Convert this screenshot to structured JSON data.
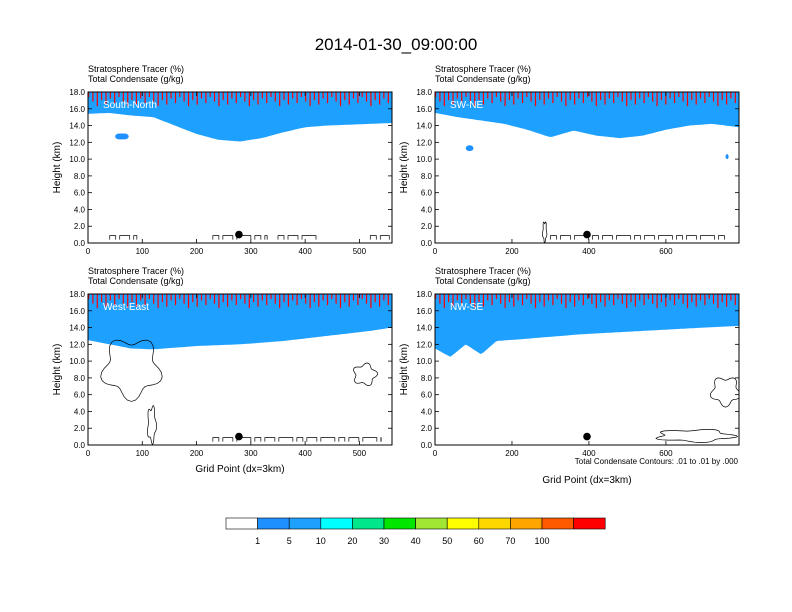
{
  "figure": {
    "title": "2014-01-30_09:00:00",
    "footnote": "Total Condensate Contours: .01 to .01 by .000",
    "colors": {
      "background": "#ffffff",
      "frame": "#000000",
      "contour": "#000000",
      "marker": "#000000"
    }
  },
  "colorbar": {
    "labels": [
      "1",
      "5",
      "10",
      "20",
      "30",
      "40",
      "50",
      "60",
      "70",
      "100"
    ],
    "colors": [
      "#ffffff",
      "#1e90ff",
      "#1ea0ff",
      "#00ffff",
      "#00e68a",
      "#00e600",
      "#a0e632",
      "#ffff00",
      "#ffd700",
      "#ffa500",
      "#ff5a00",
      "#ff0000"
    ]
  },
  "chart_data": [
    {
      "type": "heatmap",
      "panel_label": "South-North",
      "title_line1": "Stratosphere Tracer   (%)",
      "title_line2": "Total Condensate   (g/kg)",
      "ylabel": "Height (km)",
      "xlabel": "",
      "xlim": [
        0,
        560
      ],
      "ylim": [
        0,
        18
      ],
      "xticks": [
        0,
        100,
        200,
        300,
        400,
        500
      ],
      "yticks": [
        "0.0",
        "2.0",
        "4.0",
        "6.0",
        "8.0",
        "10.0",
        "12.0",
        "14.0",
        "16.0",
        "18.0"
      ],
      "marker_x": 278,
      "marker_y": 1.0,
      "tracer_profile": {
        "x": [
          0,
          40,
          80,
          120,
          160,
          200,
          240,
          280,
          320,
          360,
          400,
          440,
          480,
          520,
          560
        ],
        "base_km": [
          15.4,
          15.5,
          15.2,
          15.0,
          14.0,
          13.0,
          12.3,
          12.1,
          12.5,
          13.2,
          13.8,
          14.0,
          14.1,
          14.2,
          14.3
        ]
      },
      "isolated_patches": [
        {
          "x": 50,
          "y": 12.7,
          "width": 25,
          "height": 0.7
        }
      ],
      "condensate_contours": [
        {
          "x": [
            40,
            90
          ],
          "y": [
            0.4,
            0.4
          ]
        },
        {
          "x": [
            230,
            330
          ],
          "y": [
            0.4,
            0.4
          ]
        },
        {
          "x": [
            350,
            420
          ],
          "y": [
            0.4,
            0.4
          ]
        },
        {
          "x": [
            520,
            555
          ],
          "y": [
            0.4,
            0.4
          ]
        }
      ]
    },
    {
      "type": "heatmap",
      "panel_label": "SW-NE",
      "title_line1": "Stratosphere Tracer   (%)",
      "title_line2": "Total Condensate   (g/kg)",
      "ylabel": "Height (km)",
      "xlabel": "",
      "xlim": [
        0,
        790
      ],
      "ylim": [
        0,
        18
      ],
      "xticks": [
        0,
        200,
        400,
        600
      ],
      "yticks": [
        "0.0",
        "2.0",
        "4.0",
        "6.0",
        "8.0",
        "10.0",
        "12.0",
        "14.0",
        "16.0",
        "18.0"
      ],
      "marker_x": 395,
      "marker_y": 1.0,
      "tracer_profile": {
        "x": [
          0,
          60,
          120,
          180,
          240,
          300,
          360,
          420,
          480,
          540,
          600,
          660,
          720,
          790
        ],
        "base_km": [
          15.5,
          15.0,
          14.6,
          14.2,
          13.5,
          12.6,
          13.4,
          12.8,
          12.5,
          12.8,
          13.5,
          14.0,
          14.2,
          13.8
        ]
      },
      "isolated_patches": [
        {
          "x": 80,
          "y": 11.3,
          "width": 20,
          "height": 0.7
        },
        {
          "x": 755,
          "y": 10.3,
          "width": 8,
          "height": 0.6
        }
      ],
      "condensate_contours": [
        {
          "x": [
            280,
            290
          ],
          "y": [
            0.2,
            2.5
          ]
        },
        {
          "x": [
            300,
            760
          ],
          "y": [
            0.4,
            0.4
          ]
        }
      ]
    },
    {
      "type": "heatmap",
      "panel_label": "West-East",
      "title_line1": "Stratosphere Tracer   (%)",
      "title_line2": "Total Condensate   (g/kg)",
      "ylabel": "Height (km)",
      "xlabel": "Grid Point (dx=3km)",
      "xlim": [
        0,
        560
      ],
      "ylim": [
        0,
        18
      ],
      "xticks": [
        0,
        100,
        200,
        300,
        400,
        500
      ],
      "yticks": [
        "0.0",
        "2.0",
        "4.0",
        "6.0",
        "8.0",
        "10.0",
        "12.0",
        "14.0",
        "16.0",
        "18.0"
      ],
      "marker_x": 278,
      "marker_y": 1.0,
      "tracer_profile": {
        "x": [
          0,
          40,
          80,
          120,
          160,
          200,
          240,
          280,
          320,
          360,
          400,
          440,
          480,
          520,
          560
        ],
        "base_km": [
          12.5,
          12.0,
          11.5,
          11.4,
          11.6,
          11.8,
          11.9,
          12.0,
          12.2,
          12.4,
          12.7,
          13.0,
          13.3,
          13.6,
          14.0
        ]
      },
      "isolated_patches": [],
      "condensate_contours": [
        {
          "x": [
            30,
            130
          ],
          "y": [
            5.8,
            12.5
          ]
        },
        {
          "x": [
            110,
            125
          ],
          "y": [
            0.4,
            4.5
          ]
        },
        {
          "x": [
            490,
            530
          ],
          "y": [
            7.2,
            9.6
          ]
        },
        {
          "x": [
            230,
            540
          ],
          "y": [
            0.4,
            0.4
          ]
        }
      ]
    },
    {
      "type": "heatmap",
      "panel_label": "NW-SE",
      "title_line1": "Stratosphere Tracer   (%)",
      "title_line2": "Total Condensate   (g/kg)",
      "ylabel": "Height (km)",
      "xlabel": "Grid Point (dx=3km)",
      "xlim": [
        0,
        790
      ],
      "ylim": [
        0,
        18
      ],
      "xticks": [
        0,
        200,
        400,
        600
      ],
      "yticks": [
        "0.0",
        "2.0",
        "4.0",
        "6.0",
        "8.0",
        "10.0",
        "12.0",
        "14.0",
        "16.0",
        "18.0"
      ],
      "marker_x": 395,
      "marker_y": 1.0,
      "tracer_profile": {
        "x": [
          0,
          40,
          80,
          120,
          160,
          220,
          300,
          380,
          460,
          540,
          620,
          700,
          790
        ],
        "base_km": [
          11.5,
          10.5,
          12.0,
          10.8,
          12.4,
          12.6,
          12.9,
          13.2,
          13.4,
          13.6,
          13.8,
          14.0,
          14.2
        ]
      },
      "isolated_patches": [],
      "condensate_contours": [
        {
          "x": [
            720,
            790
          ],
          "y": [
            4.8,
            8.0
          ]
        },
        {
          "x": [
            580,
            770
          ],
          "y": [
            0.4,
            1.8
          ]
        }
      ]
    }
  ]
}
